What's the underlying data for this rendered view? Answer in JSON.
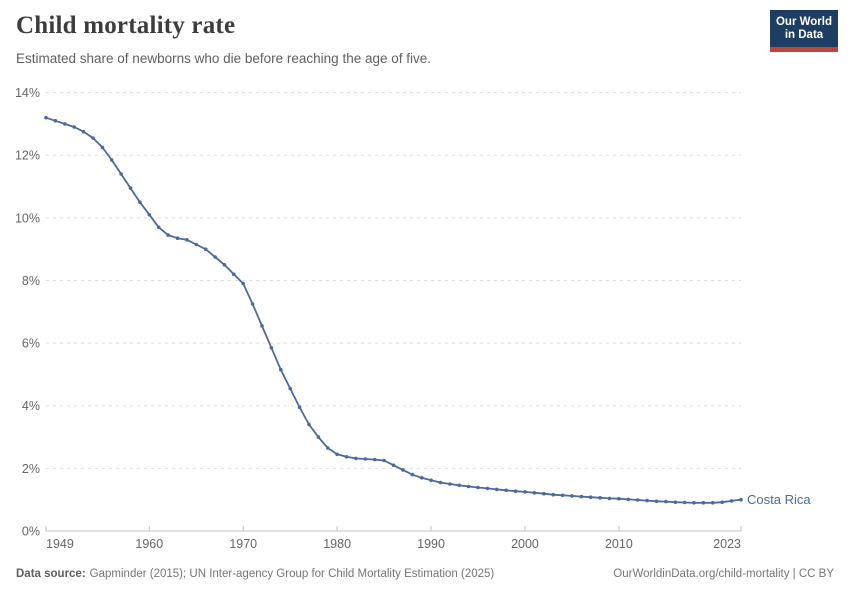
{
  "header": {
    "title": "Child mortality rate",
    "subtitle": "Estimated share of newborns who die before reaching the age of five.",
    "logo": {
      "line1": "Our World",
      "line2": "in Data"
    }
  },
  "chart_data": {
    "type": "line",
    "title": "Child mortality rate",
    "xlabel": "",
    "ylabel": "",
    "xlim": [
      1949,
      2023
    ],
    "ylim": [
      0,
      14
    ],
    "x_ticks": [
      1949,
      1960,
      1970,
      1980,
      1990,
      2000,
      2010,
      2023
    ],
    "y_ticks": [
      0,
      2,
      4,
      6,
      8,
      10,
      12,
      14
    ],
    "y_tick_suffix": "%",
    "grid": "horizontal-dashed",
    "legend_position": "end-of-line-label",
    "series": [
      {
        "name": "Costa Rica",
        "color": "#4c6a9c",
        "x": [
          1949,
          1950,
          1951,
          1952,
          1953,
          1954,
          1955,
          1956,
          1957,
          1958,
          1959,
          1960,
          1961,
          1962,
          1963,
          1964,
          1965,
          1966,
          1967,
          1968,
          1969,
          1970,
          1971,
          1972,
          1973,
          1974,
          1975,
          1976,
          1977,
          1978,
          1979,
          1980,
          1981,
          1982,
          1983,
          1984,
          1985,
          1986,
          1987,
          1988,
          1989,
          1990,
          1991,
          1992,
          1993,
          1994,
          1995,
          1996,
          1997,
          1998,
          1999,
          2000,
          2001,
          2002,
          2003,
          2004,
          2005,
          2006,
          2007,
          2008,
          2009,
          2010,
          2011,
          2012,
          2013,
          2014,
          2015,
          2016,
          2017,
          2018,
          2019,
          2020,
          2021,
          2022,
          2023
        ],
        "values": [
          13.2,
          13.1,
          13.0,
          12.9,
          12.75,
          12.55,
          12.25,
          11.85,
          11.4,
          10.95,
          10.5,
          10.1,
          9.7,
          9.45,
          9.35,
          9.3,
          9.15,
          9.0,
          8.75,
          8.5,
          8.2,
          7.9,
          7.25,
          6.55,
          5.85,
          5.15,
          4.55,
          3.95,
          3.4,
          3.0,
          2.65,
          2.45,
          2.37,
          2.32,
          2.3,
          2.28,
          2.25,
          2.1,
          1.95,
          1.8,
          1.7,
          1.62,
          1.55,
          1.5,
          1.46,
          1.42,
          1.39,
          1.36,
          1.33,
          1.3,
          1.27,
          1.25,
          1.22,
          1.19,
          1.16,
          1.14,
          1.12,
          1.1,
          1.08,
          1.06,
          1.04,
          1.03,
          1.01,
          0.99,
          0.97,
          0.95,
          0.94,
          0.92,
          0.91,
          0.9,
          0.9,
          0.9,
          0.92,
          0.96,
          1.0
        ]
      }
    ]
  },
  "footer": {
    "datasource_label": "Data source:",
    "datasource_text": "Gapminder (2015); UN Inter-agency Group for Child Mortality Estimation (2025)",
    "attribution": "OurWorldinData.org/child-mortality | CC BY"
  },
  "colors": {
    "line": "#4c6a9c",
    "grid": "#dddddd",
    "axis": "#c3c3c3",
    "tick_text": "#666666",
    "logo_bg": "#1d3d63",
    "logo_bar": "#c1443c"
  }
}
